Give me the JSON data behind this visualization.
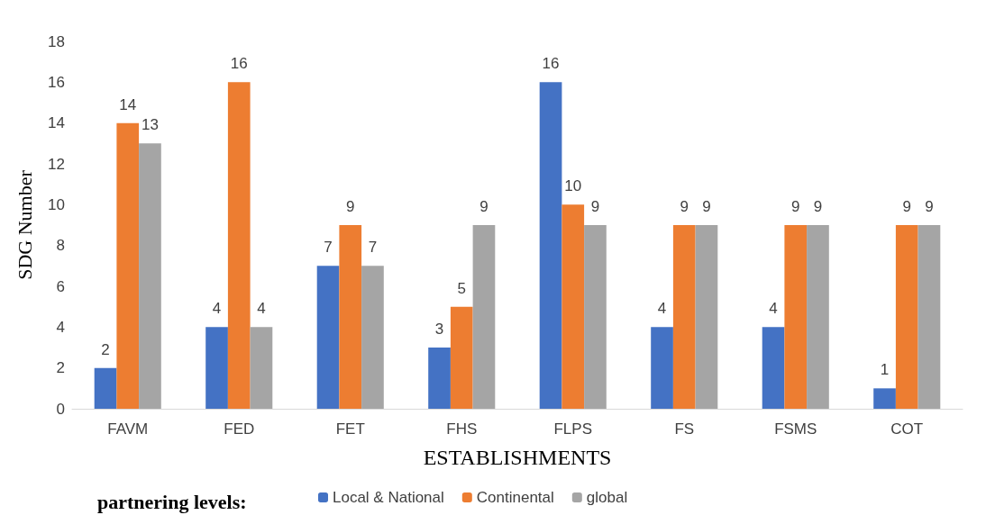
{
  "chart_data": {
    "type": "bar",
    "ylabel": "SDG Number",
    "xlabel": "ESTABLISHMENTS",
    "legend_title": "partnering levels:",
    "categories": [
      "FAVM",
      "FED",
      "FET",
      "FHS",
      "FLPS",
      "FS",
      "FSMS",
      "COT"
    ],
    "series": [
      {
        "name": "Local & National",
        "color": "#4472c4",
        "values": [
          2,
          4,
          7,
          3,
          16,
          4,
          4,
          1
        ]
      },
      {
        "name": "Continental",
        "color": "#ed7d31",
        "values": [
          14,
          16,
          9,
          5,
          10,
          9,
          9,
          9
        ]
      },
      {
        "name": "global",
        "color": "#a5a5a5",
        "values": [
          13,
          4,
          7,
          9,
          9,
          9,
          9,
          9
        ]
      }
    ],
    "ylim": [
      0,
      18
    ],
    "yticks": [
      0,
      2,
      4,
      6,
      8,
      10,
      12,
      14,
      16,
      18
    ],
    "grid": false,
    "legend": "bottom",
    "data_labels": true
  }
}
